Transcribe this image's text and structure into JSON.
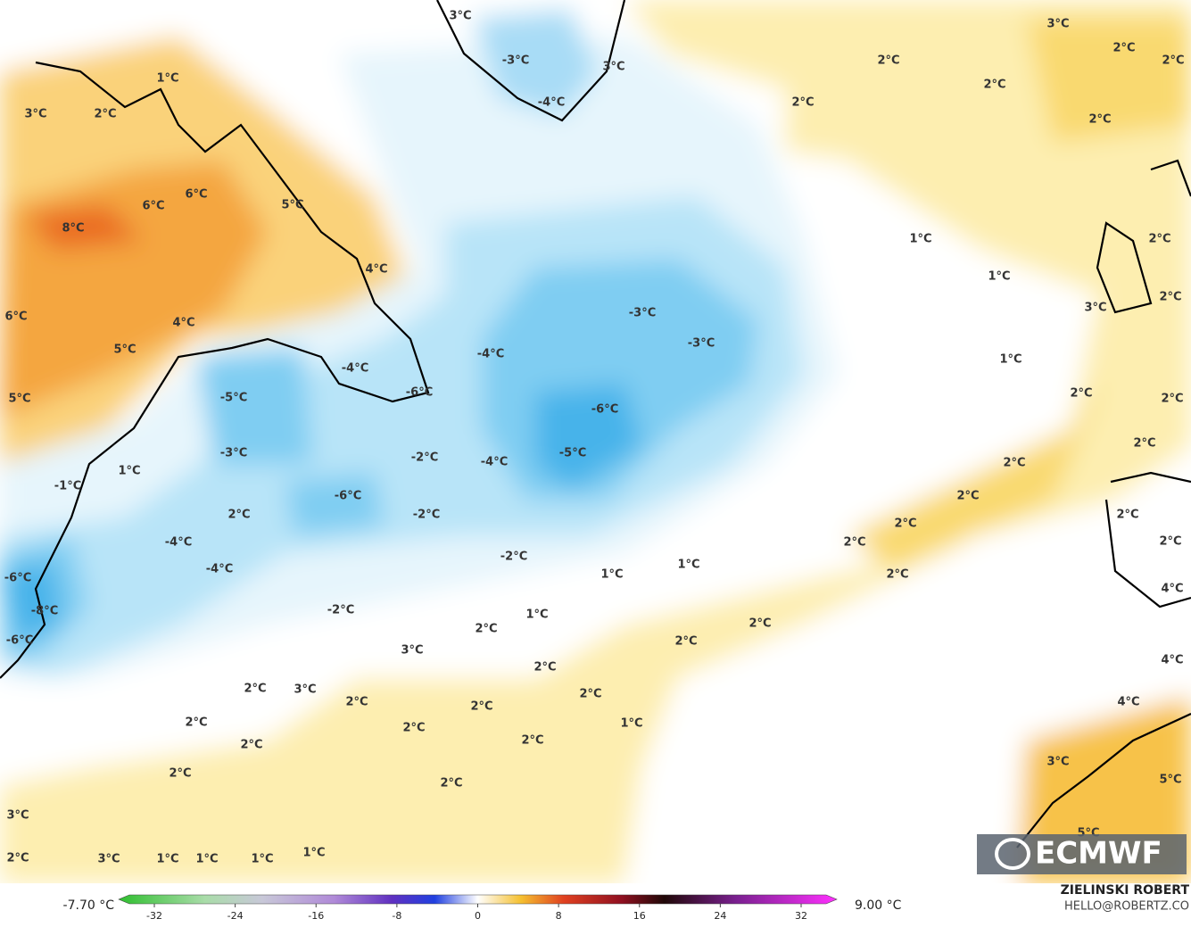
{
  "map": {
    "labels": [
      "3°C",
      "-3°C",
      "3°C",
      "-4°C",
      "3°C",
      "2°C",
      "2°C",
      "2°C",
      "2°C",
      "2°C",
      "2°C",
      "1°C",
      "3°C",
      "2°C",
      "6°C",
      "6°C",
      "8°C",
      "5°C",
      "4°C",
      "1°C",
      "1°C",
      "3°C",
      "6°C",
      "4°C",
      "-3°C",
      "-3°C",
      "5°C",
      "-4°C",
      "1°C",
      "-4°C",
      "-6°C",
      "-5°C",
      "5°C",
      "2°C",
      "2°C",
      "-6°C",
      "-5°C",
      "2°C",
      "-2°C",
      "-4°C",
      "-3°C",
      "1°C",
      "-1°C",
      "2°C",
      "-6°C",
      "2°C",
      "2°C",
      "-2°C",
      "2°C",
      "2°C",
      "-4°C",
      "-2°C",
      "-4°C",
      "1°C",
      "1°C",
      "2°C",
      "-6°C",
      "-8°C",
      "-2°C",
      "1°C",
      "2°C",
      "2°C",
      "2°C",
      "-6°C",
      "3°C",
      "2°C",
      "2°C",
      "2°C",
      "3°C",
      "2°C",
      "2°C",
      "2°C",
      "2°C",
      "1°C",
      "2°C",
      "2°C",
      "2°C",
      "2°C",
      "3°C",
      "5°C",
      "3°C",
      "2°C",
      "3°C",
      "1°C",
      "1°C",
      "1°C",
      "1°C",
      "4°C",
      "4°C",
      "4°C",
      "2°C",
      "2°C",
      "2°C",
      "2°C",
      "5°C"
    ],
    "colorbar": {
      "min_label": "-7.70 °C",
      "max_label": "9.00 °C",
      "ticks": [
        -32,
        -24,
        -16,
        -8,
        0,
        8,
        16,
        24,
        32
      ],
      "lim": [
        -32,
        32
      ]
    },
    "logo": "ECMWF",
    "credit": {
      "name": "ZIELINSKI ROBERT",
      "email": "HELLO@ROBERTZ.CO"
    }
  }
}
